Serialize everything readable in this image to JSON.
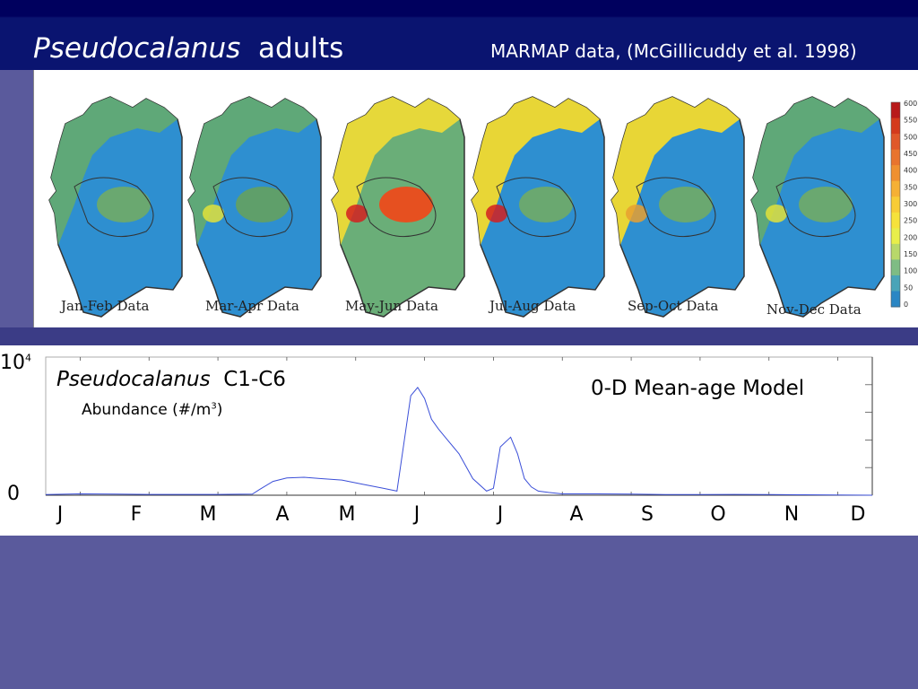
{
  "slide": {
    "title_italic": "Pseudocalanus",
    "title_rest": "adults",
    "source": "MARMAP data, (McGillicuddy et al. 1998)"
  },
  "maps": {
    "labels": [
      "Jan-Feb Data",
      "Mar-Apr Data",
      "May-Jun Data",
      "Jul-Aug Data",
      "Sep-Oct Data",
      "Nov-Dec Data"
    ],
    "colorbar_ticks": [
      "600",
      "550",
      "500",
      "450",
      "400",
      "350",
      "300",
      "250",
      "200",
      "150",
      "100",
      "50",
      "0"
    ],
    "colorbar_colors": [
      "#b81a1a",
      "#d43a1c",
      "#e0582a",
      "#e8742e",
      "#ef9030",
      "#f5b034",
      "#f8cc36",
      "#f6e23a",
      "#e8ee4a",
      "#b8d86a",
      "#7fbc84",
      "#4aa4b8",
      "#2a86c4"
    ]
  },
  "chart": {
    "ytick_top": "10",
    "ytick_top_exp": "4",
    "ytick_zero": "0",
    "species_italic": "Pseudocalanus",
    "species_stage": "C1-C6",
    "abundance_label": "Abundance (#/m",
    "abundance_exp": "3",
    "abundance_close": ")",
    "model_label": "0-D Mean-age Model"
  },
  "chart_data": {
    "type": "line",
    "x_labels": [
      "J",
      "F",
      "M",
      "A",
      "M",
      "J",
      "J",
      "A",
      "S",
      "O",
      "N",
      "D"
    ],
    "ylim": [
      0,
      10000
    ],
    "series": [
      {
        "color": "#3b4fd8",
        "x": [
          0,
          0.5,
          1,
          1.5,
          2,
          2.5,
          3,
          3.1,
          3.3,
          3.5,
          3.75,
          4,
          4.3,
          4.6,
          4.9,
          5.1,
          5.3,
          5.4,
          5.5,
          5.6,
          5.7,
          5.8,
          6,
          6.2,
          6.4,
          6.5,
          6.6,
          6.75,
          6.85,
          6.95,
          7.05,
          7.15,
          7.3,
          7.5,
          8,
          8.5,
          9,
          9.5,
          10,
          10.5,
          11,
          11.5,
          12
        ],
        "y": [
          50,
          100,
          80,
          60,
          60,
          60,
          80,
          400,
          1000,
          1250,
          1300,
          1200,
          1100,
          800,
          500,
          300,
          7200,
          7800,
          7000,
          5500,
          4800,
          4200,
          3000,
          1200,
          300,
          500,
          3500,
          4200,
          3000,
          1200,
          600,
          300,
          200,
          100,
          100,
          80,
          50,
          50,
          60,
          50,
          30,
          20,
          0
        ]
      }
    ]
  }
}
